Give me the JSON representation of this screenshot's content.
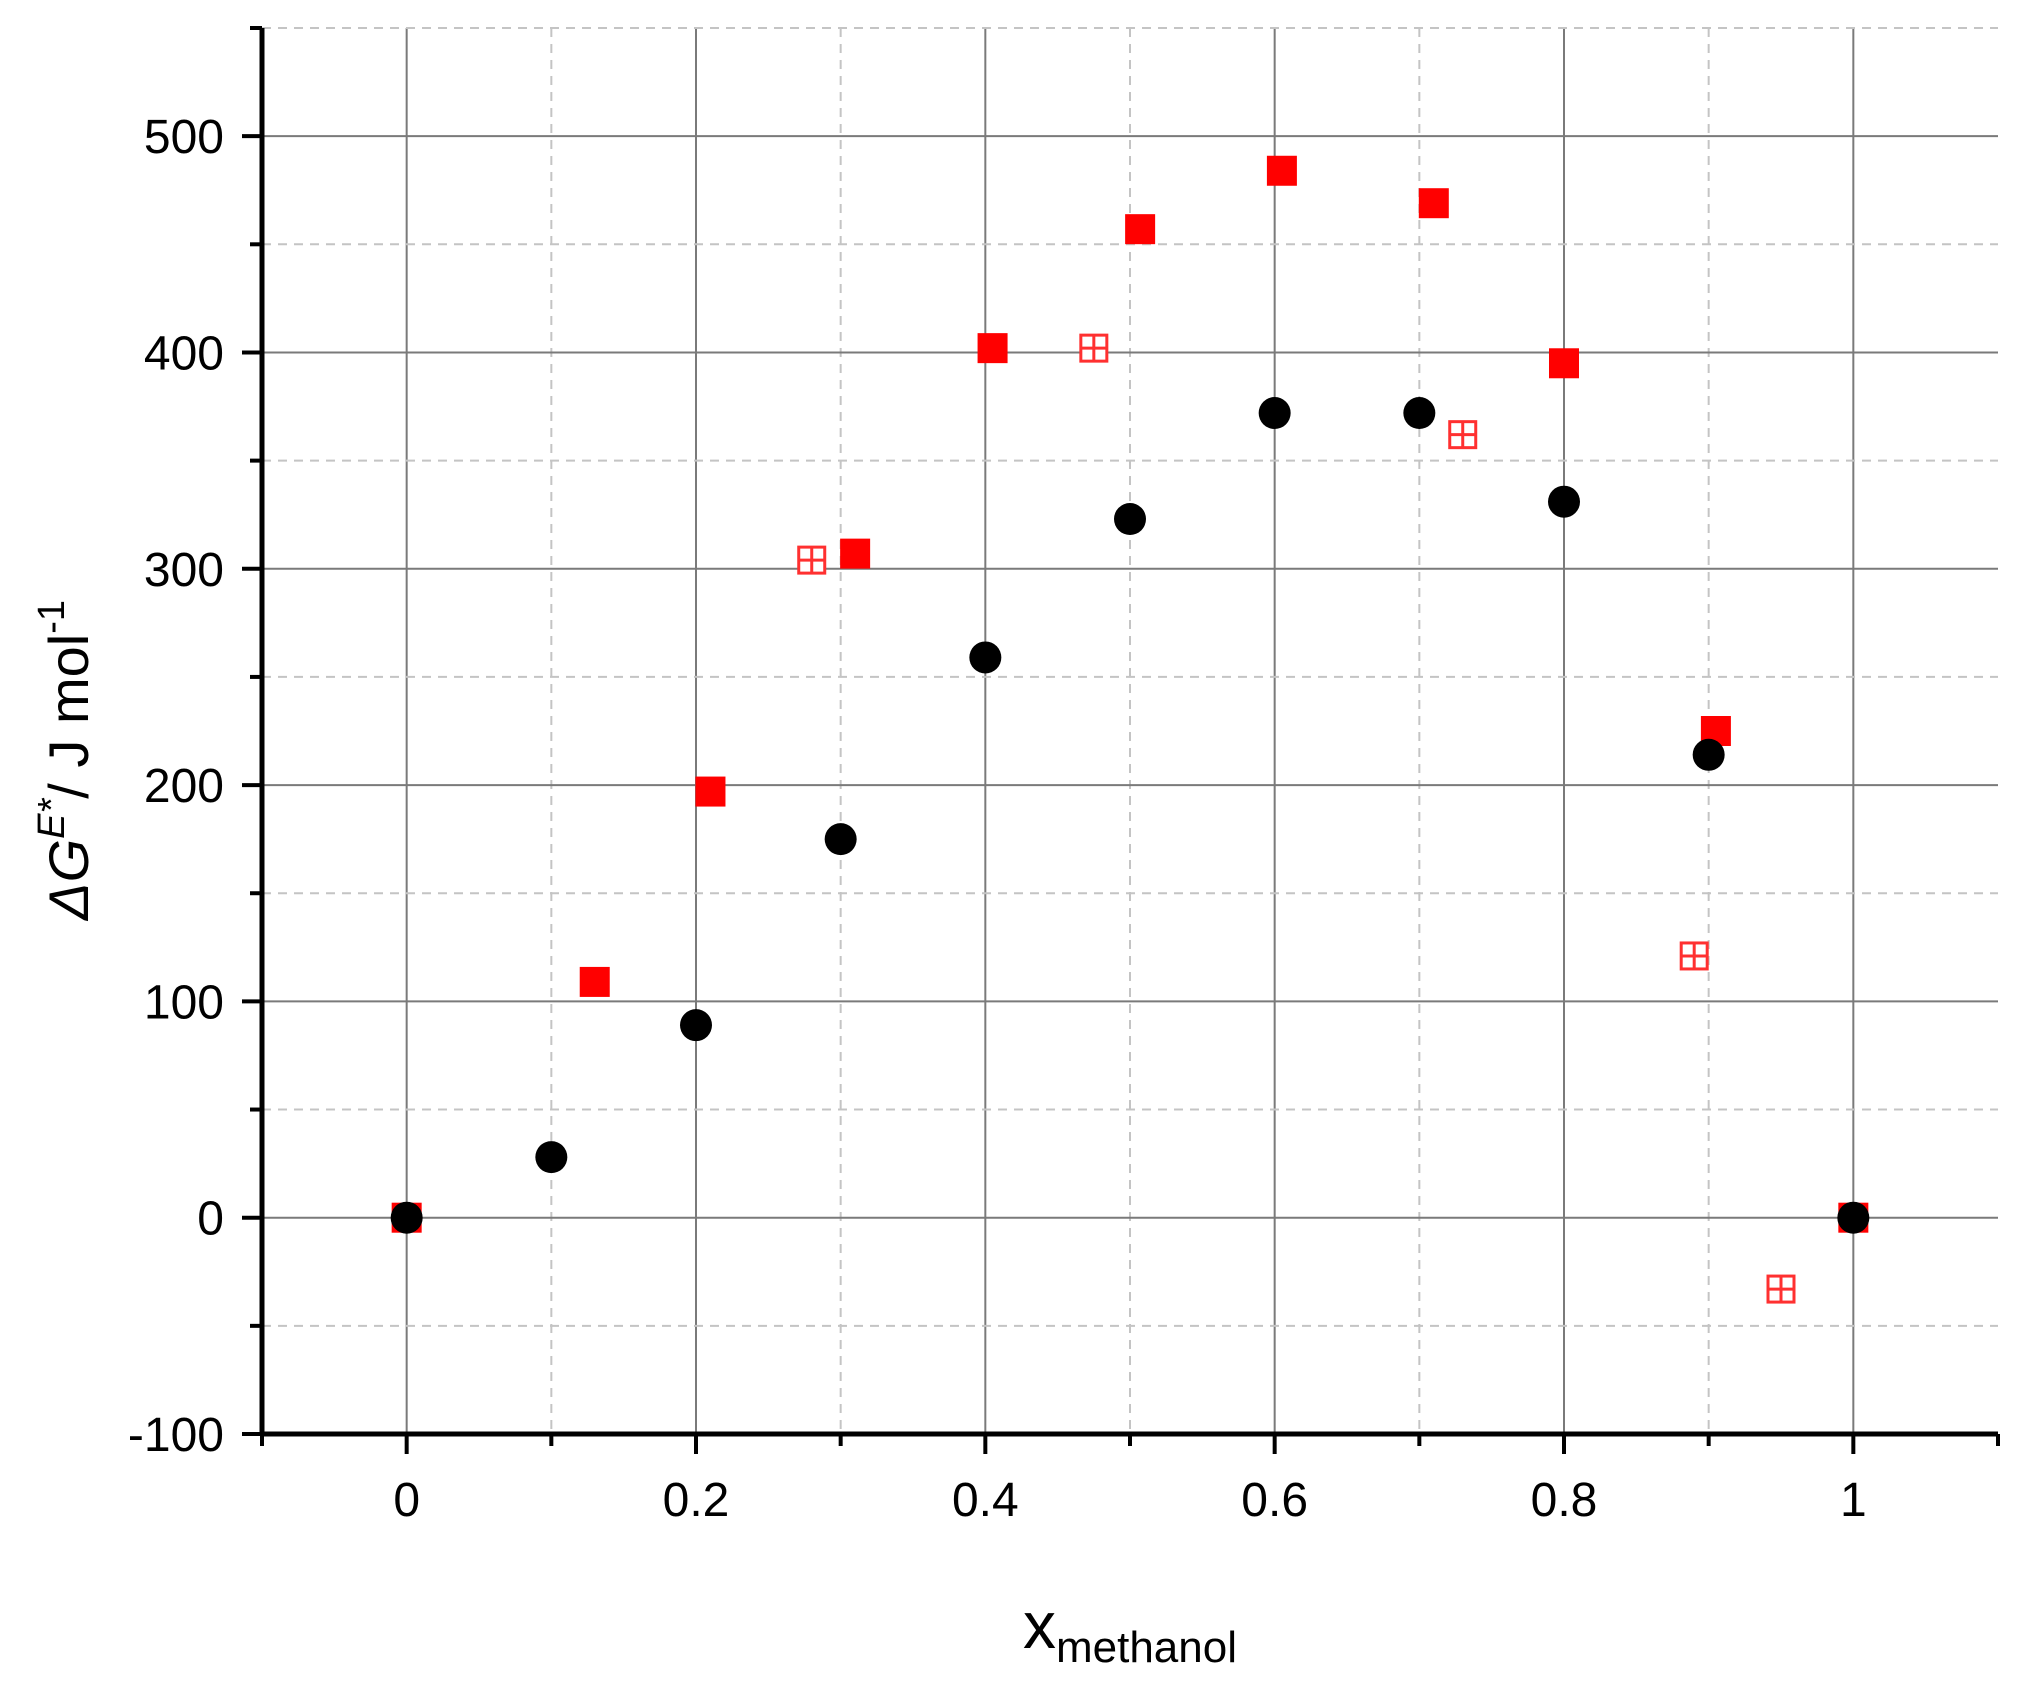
{
  "chart_data": {
    "type": "scatter",
    "xlim": [
      -0.1,
      1.1
    ],
    "ylim": [
      -100,
      550
    ],
    "x_ticks": [
      "0",
      "0.2",
      "0.4",
      "0.6",
      "0.8",
      "1"
    ],
    "y_ticks": [
      "-100",
      "0",
      "100",
      "200",
      "300",
      "400",
      "500"
    ],
    "xlabel": {
      "base": "x",
      "sub": "methanol"
    },
    "ylabel": {
      "delta": "Δ",
      "var": "G",
      "sup": "E*",
      "unit": "/ J mol",
      "unit_sup": "-1"
    },
    "grid": true,
    "series": [
      {
        "marker": "square-filled",
        "color": "#ff0000",
        "points": [
          {
            "x": 0.0,
            "y": 0
          },
          {
            "x": 0.13,
            "y": 109
          },
          {
            "x": 0.21,
            "y": 197
          },
          {
            "x": 0.31,
            "y": 307
          },
          {
            "x": 0.405,
            "y": 402
          },
          {
            "x": 0.507,
            "y": 457
          },
          {
            "x": 0.605,
            "y": 484
          },
          {
            "x": 0.71,
            "y": 469
          },
          {
            "x": 0.8,
            "y": 395
          },
          {
            "x": 0.905,
            "y": 225
          },
          {
            "x": 1.0,
            "y": 0
          }
        ]
      },
      {
        "marker": "square-crosshatch",
        "color": "#ff3030",
        "points": [
          {
            "x": 0.28,
            "y": 304
          },
          {
            "x": 0.475,
            "y": 402
          },
          {
            "x": 0.73,
            "y": 362
          },
          {
            "x": 0.89,
            "y": 121
          },
          {
            "x": 0.95,
            "y": -33
          }
        ]
      },
      {
        "marker": "circle-filled",
        "color": "#000000",
        "points": [
          {
            "x": 0.0,
            "y": 0
          },
          {
            "x": 0.1,
            "y": 28
          },
          {
            "x": 0.2,
            "y": 89
          },
          {
            "x": 0.3,
            "y": 175
          },
          {
            "x": 0.4,
            "y": 259
          },
          {
            "x": 0.5,
            "y": 323
          },
          {
            "x": 0.6,
            "y": 372
          },
          {
            "x": 0.7,
            "y": 372
          },
          {
            "x": 0.8,
            "y": 331
          },
          {
            "x": 0.9,
            "y": 214
          },
          {
            "x": 1.0,
            "y": 0
          }
        ]
      }
    ]
  }
}
